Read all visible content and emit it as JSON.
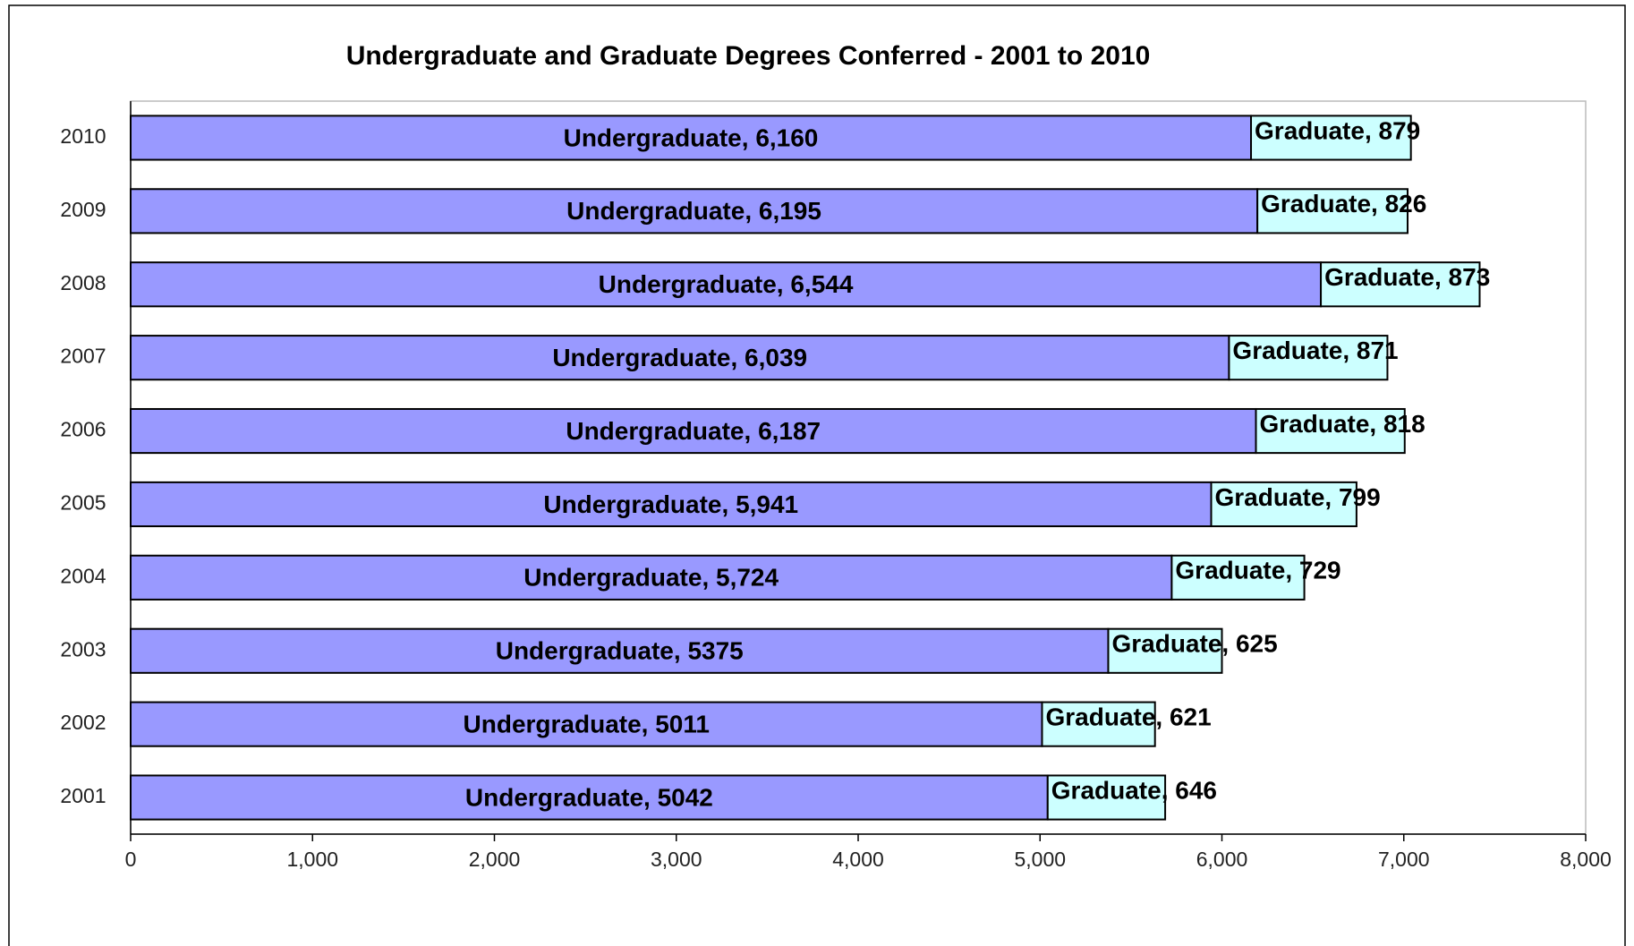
{
  "chart_data": {
    "type": "stacked-barh",
    "title": "Undergraduate and Graduate Degrees Conferred  - 2001 to 2010",
    "categories": [
      "2001",
      "2002",
      "2003",
      "2004",
      "2005",
      "2006",
      "2007",
      "2008",
      "2009",
      "2010"
    ],
    "series": [
      {
        "name": "Undergraduate",
        "color": "#9999ff",
        "values": [
          5042,
          5011,
          5375,
          5724,
          5941,
          6187,
          6039,
          6544,
          6195,
          6160
        ],
        "value_labels": [
          "Undergraduate, 5042",
          "Undergraduate, 5011",
          "Undergraduate, 5375",
          "Undergraduate, 5,724",
          "Undergraduate, 5,941",
          "Undergraduate, 6,187",
          "Undergraduate, 6,039",
          "Undergraduate, 6,544",
          "Undergraduate, 6,195",
          "Undergraduate, 6,160"
        ]
      },
      {
        "name": "Graduate",
        "color": "#ccffff",
        "values": [
          646,
          621,
          625,
          729,
          799,
          818,
          871,
          873,
          826,
          879
        ],
        "value_labels": [
          "Graduate, 646",
          "Graduate, 621",
          "Graduate, 625",
          "Graduate, 729",
          "Graduate, 799",
          "Graduate, 818",
          "Graduate, 871",
          "Graduate, 873",
          "Graduate, 826",
          "Graduate, 879"
        ]
      }
    ],
    "xlim": [
      0,
      8000
    ],
    "xticks": [
      0,
      {
        "value": 1000,
        "label": "1,000"
      },
      {
        "value": 2000,
        "label": "2,000"
      },
      {
        "value": 3000,
        "label": "3,000"
      },
      {
        "value": 4000,
        "label": "4,000"
      },
      {
        "value": 5000,
        "label": "5,000"
      },
      {
        "value": 6000,
        "label": "6,000"
      },
      {
        "value": 7000,
        "label": "7,000"
      },
      {
        "value": 8000,
        "label": "8,000"
      }
    ],
    "grid": false
  }
}
